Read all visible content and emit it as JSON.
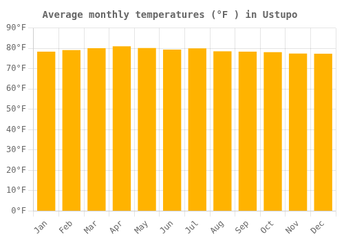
{
  "chart_data": {
    "type": "bar",
    "title": "Average monthly temperatures (°F ) in Ustupo",
    "categories": [
      "Jan",
      "Feb",
      "Mar",
      "Apr",
      "May",
      "Jun",
      "Jul",
      "Aug",
      "Sep",
      "Oct",
      "Nov",
      "Dec"
    ],
    "values": [
      78.4,
      79.2,
      80.1,
      81.0,
      80.2,
      79.4,
      80.0,
      78.6,
      78.4,
      78.2,
      77.5,
      77.4
    ],
    "color": "#FFB300",
    "ylim": [
      0,
      90
    ],
    "yticks": [
      {
        "value": 0,
        "label": "0°F"
      },
      {
        "value": 10,
        "label": "10°F"
      },
      {
        "value": 20,
        "label": "20°F"
      },
      {
        "value": 30,
        "label": "30°F"
      },
      {
        "value": 40,
        "label": "40°F"
      },
      {
        "value": 50,
        "label": "50°F"
      },
      {
        "value": 60,
        "label": "60°F"
      },
      {
        "value": 70,
        "label": "70°F"
      },
      {
        "value": 80,
        "label": "80°F"
      },
      {
        "value": 90,
        "label": "90°F"
      }
    ],
    "grid": true
  }
}
